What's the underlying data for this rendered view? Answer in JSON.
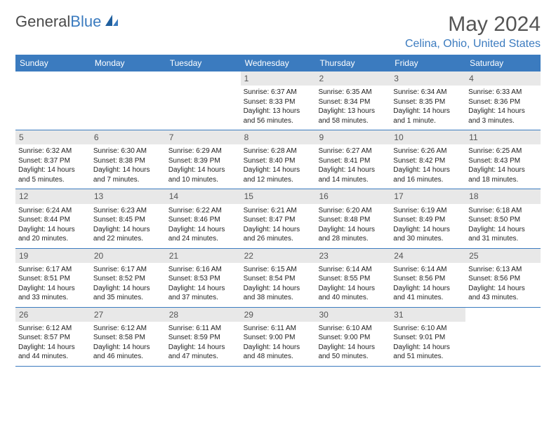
{
  "logo": {
    "text_gray": "General",
    "text_blue": "Blue"
  },
  "title": "May 2024",
  "location": "Celina, Ohio, United States",
  "colors": {
    "header_bg": "#3b7bbf",
    "header_text": "#ffffff",
    "daynum_bg": "#e8e8e8",
    "row_border": "#3b7bbf",
    "logo_gray": "#4a4a4a",
    "logo_blue": "#3b7bbf",
    "body_text": "#333333"
  },
  "weekdays": [
    "Sunday",
    "Monday",
    "Tuesday",
    "Wednesday",
    "Thursday",
    "Friday",
    "Saturday"
  ],
  "layout": {
    "columns": 7,
    "rows": 5,
    "first_weekday_index": 3
  },
  "days": [
    {
      "n": 1,
      "sunrise": "6:37 AM",
      "sunset": "8:33 PM",
      "daylight": "13 hours and 56 minutes."
    },
    {
      "n": 2,
      "sunrise": "6:35 AM",
      "sunset": "8:34 PM",
      "daylight": "13 hours and 58 minutes."
    },
    {
      "n": 3,
      "sunrise": "6:34 AM",
      "sunset": "8:35 PM",
      "daylight": "14 hours and 1 minute."
    },
    {
      "n": 4,
      "sunrise": "6:33 AM",
      "sunset": "8:36 PM",
      "daylight": "14 hours and 3 minutes."
    },
    {
      "n": 5,
      "sunrise": "6:32 AM",
      "sunset": "8:37 PM",
      "daylight": "14 hours and 5 minutes."
    },
    {
      "n": 6,
      "sunrise": "6:30 AM",
      "sunset": "8:38 PM",
      "daylight": "14 hours and 7 minutes."
    },
    {
      "n": 7,
      "sunrise": "6:29 AM",
      "sunset": "8:39 PM",
      "daylight": "14 hours and 10 minutes."
    },
    {
      "n": 8,
      "sunrise": "6:28 AM",
      "sunset": "8:40 PM",
      "daylight": "14 hours and 12 minutes."
    },
    {
      "n": 9,
      "sunrise": "6:27 AM",
      "sunset": "8:41 PM",
      "daylight": "14 hours and 14 minutes."
    },
    {
      "n": 10,
      "sunrise": "6:26 AM",
      "sunset": "8:42 PM",
      "daylight": "14 hours and 16 minutes."
    },
    {
      "n": 11,
      "sunrise": "6:25 AM",
      "sunset": "8:43 PM",
      "daylight": "14 hours and 18 minutes."
    },
    {
      "n": 12,
      "sunrise": "6:24 AM",
      "sunset": "8:44 PM",
      "daylight": "14 hours and 20 minutes."
    },
    {
      "n": 13,
      "sunrise": "6:23 AM",
      "sunset": "8:45 PM",
      "daylight": "14 hours and 22 minutes."
    },
    {
      "n": 14,
      "sunrise": "6:22 AM",
      "sunset": "8:46 PM",
      "daylight": "14 hours and 24 minutes."
    },
    {
      "n": 15,
      "sunrise": "6:21 AM",
      "sunset": "8:47 PM",
      "daylight": "14 hours and 26 minutes."
    },
    {
      "n": 16,
      "sunrise": "6:20 AM",
      "sunset": "8:48 PM",
      "daylight": "14 hours and 28 minutes."
    },
    {
      "n": 17,
      "sunrise": "6:19 AM",
      "sunset": "8:49 PM",
      "daylight": "14 hours and 30 minutes."
    },
    {
      "n": 18,
      "sunrise": "6:18 AM",
      "sunset": "8:50 PM",
      "daylight": "14 hours and 31 minutes."
    },
    {
      "n": 19,
      "sunrise": "6:17 AM",
      "sunset": "8:51 PM",
      "daylight": "14 hours and 33 minutes."
    },
    {
      "n": 20,
      "sunrise": "6:17 AM",
      "sunset": "8:52 PM",
      "daylight": "14 hours and 35 minutes."
    },
    {
      "n": 21,
      "sunrise": "6:16 AM",
      "sunset": "8:53 PM",
      "daylight": "14 hours and 37 minutes."
    },
    {
      "n": 22,
      "sunrise": "6:15 AM",
      "sunset": "8:54 PM",
      "daylight": "14 hours and 38 minutes."
    },
    {
      "n": 23,
      "sunrise": "6:14 AM",
      "sunset": "8:55 PM",
      "daylight": "14 hours and 40 minutes."
    },
    {
      "n": 24,
      "sunrise": "6:14 AM",
      "sunset": "8:56 PM",
      "daylight": "14 hours and 41 minutes."
    },
    {
      "n": 25,
      "sunrise": "6:13 AM",
      "sunset": "8:56 PM",
      "daylight": "14 hours and 43 minutes."
    },
    {
      "n": 26,
      "sunrise": "6:12 AM",
      "sunset": "8:57 PM",
      "daylight": "14 hours and 44 minutes."
    },
    {
      "n": 27,
      "sunrise": "6:12 AM",
      "sunset": "8:58 PM",
      "daylight": "14 hours and 46 minutes."
    },
    {
      "n": 28,
      "sunrise": "6:11 AM",
      "sunset": "8:59 PM",
      "daylight": "14 hours and 47 minutes."
    },
    {
      "n": 29,
      "sunrise": "6:11 AM",
      "sunset": "9:00 PM",
      "daylight": "14 hours and 48 minutes."
    },
    {
      "n": 30,
      "sunrise": "6:10 AM",
      "sunset": "9:00 PM",
      "daylight": "14 hours and 50 minutes."
    },
    {
      "n": 31,
      "sunrise": "6:10 AM",
      "sunset": "9:01 PM",
      "daylight": "14 hours and 51 minutes."
    }
  ],
  "labels": {
    "sunrise": "Sunrise:",
    "sunset": "Sunset:",
    "daylight": "Daylight:"
  }
}
